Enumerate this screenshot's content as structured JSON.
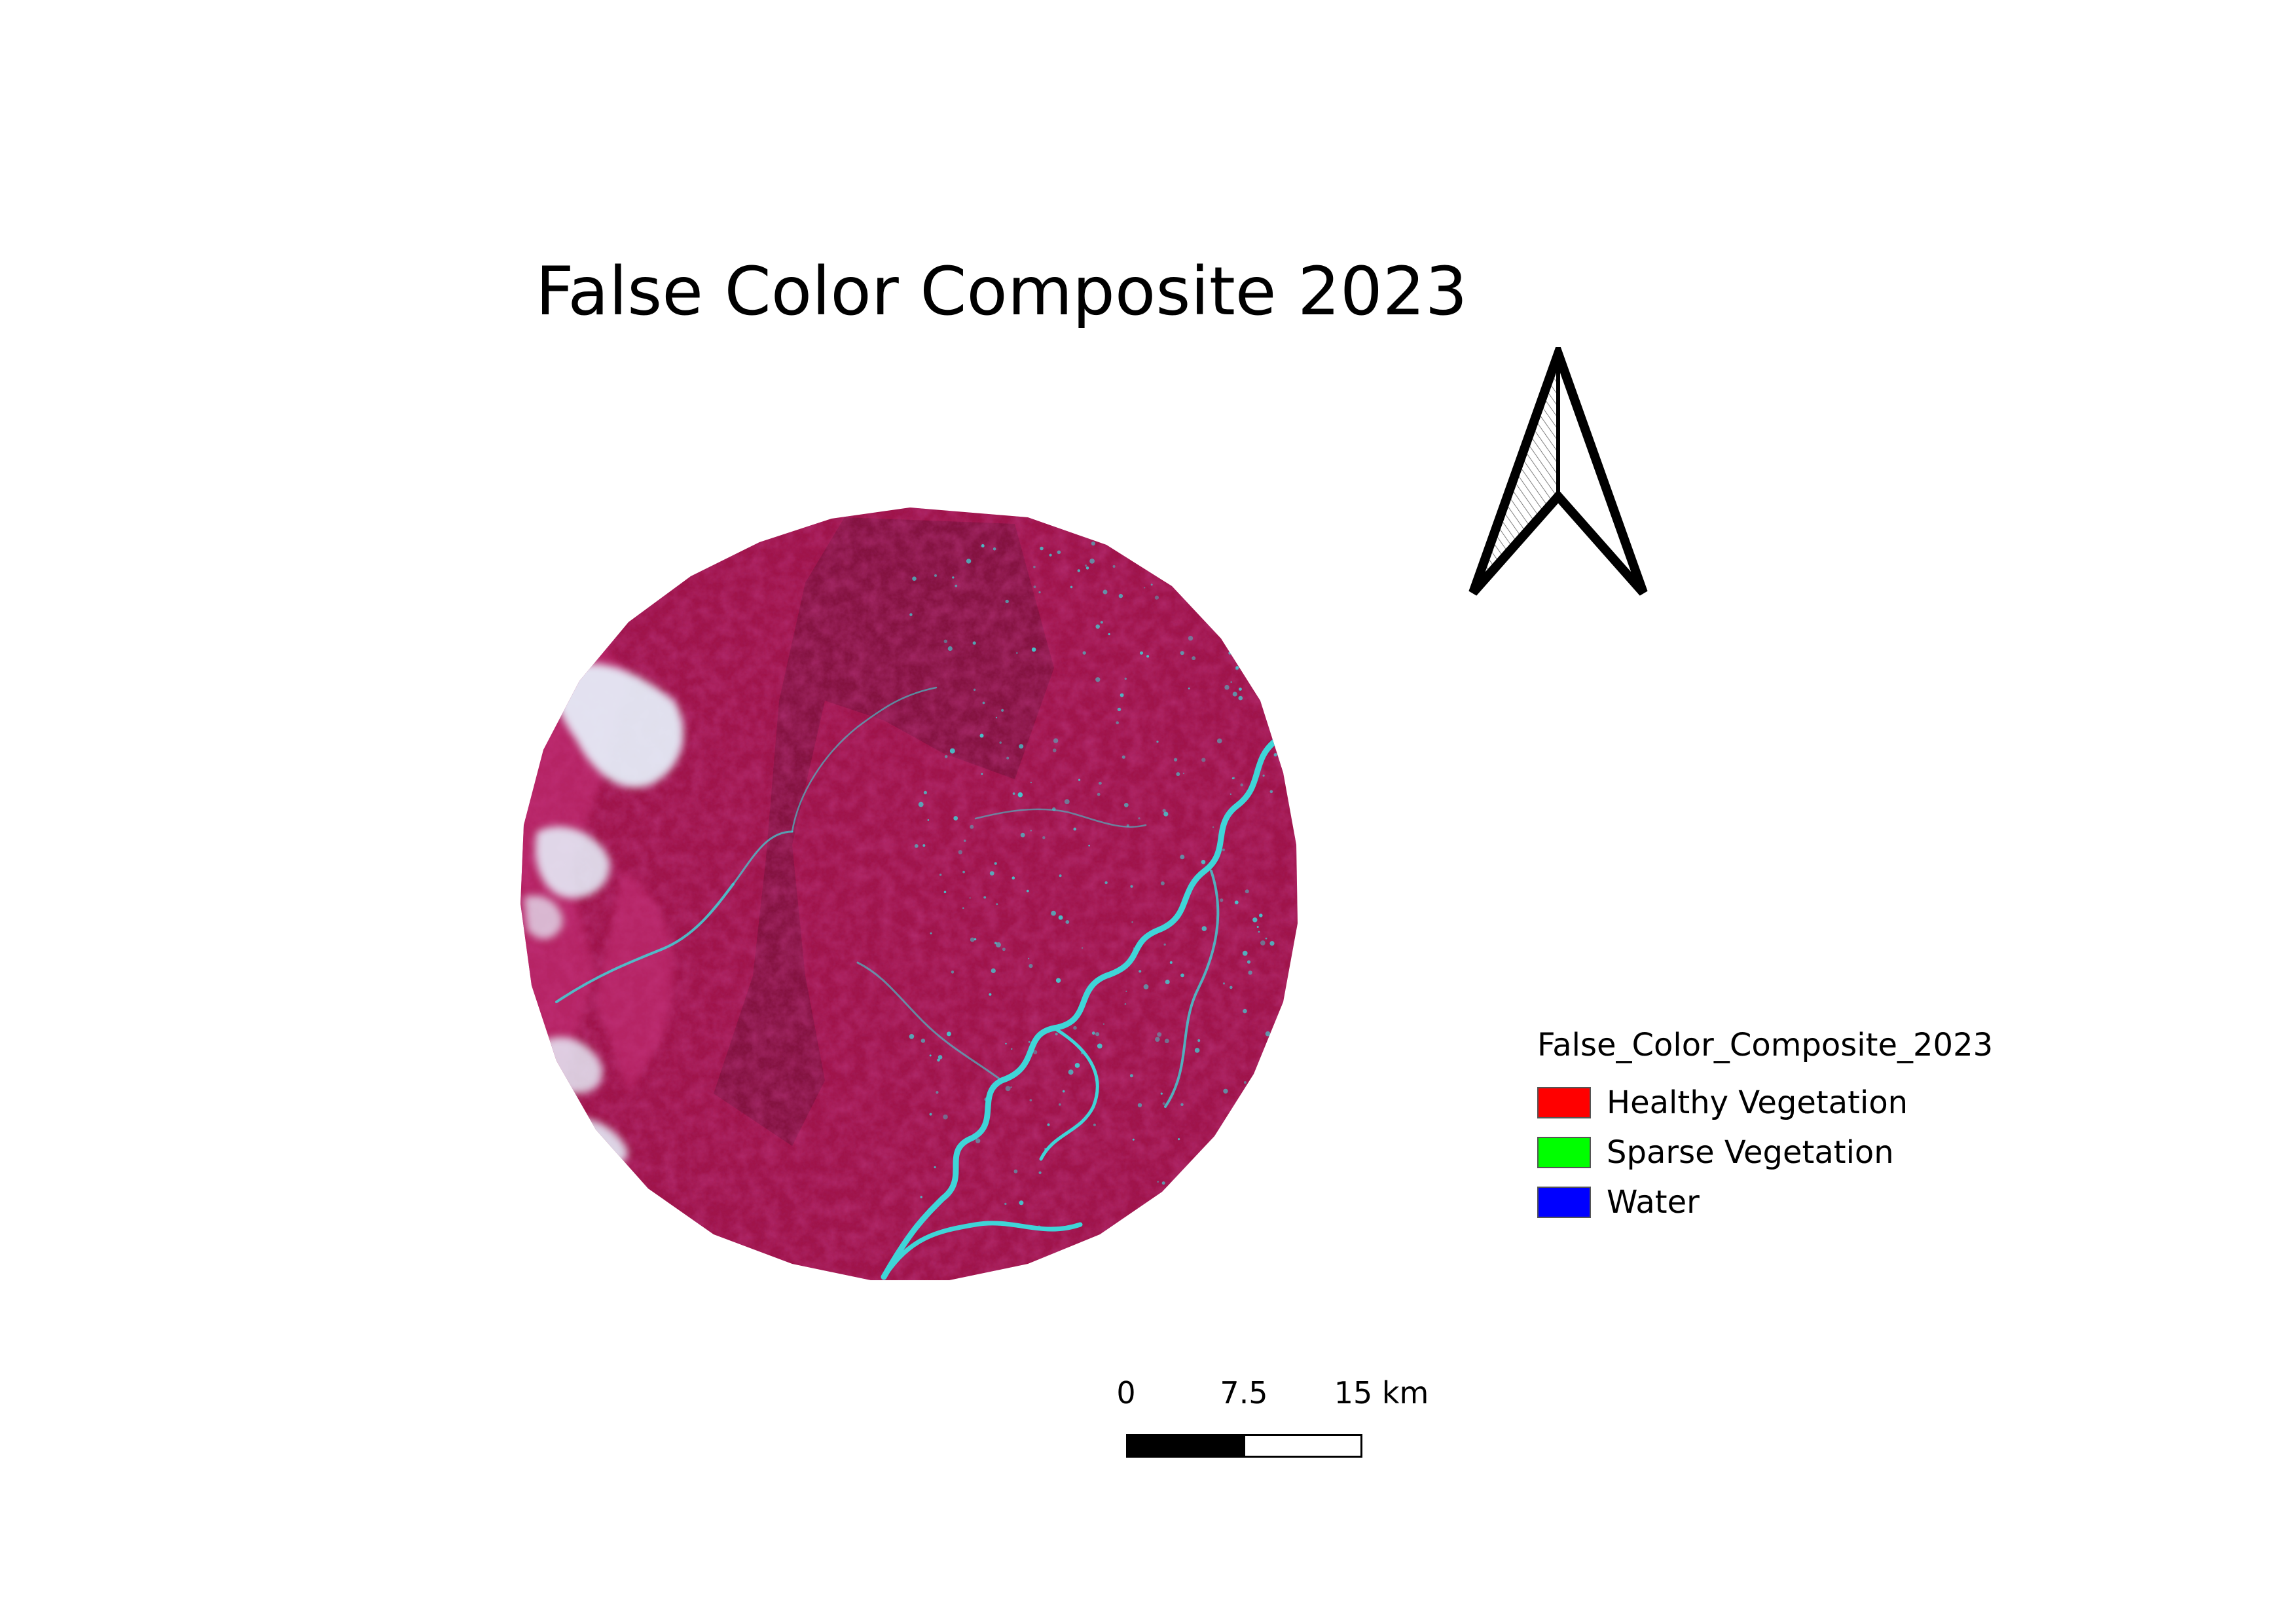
{
  "map": {
    "title": "False Color Composite 2023"
  },
  "legend": {
    "title": "False_Color_Composite_2023",
    "items": [
      {
        "label": "Healthy Vegetation",
        "color": "#ff0000"
      },
      {
        "label": "Sparse Vegetation",
        "color": "#00ff00"
      },
      {
        "label": "Water",
        "color": "#0000ff"
      }
    ]
  },
  "scale_bar": {
    "labels": [
      "0",
      "7.5",
      "15 km"
    ]
  },
  "colors": {
    "raster_base": "#a0144a",
    "raster_dark": "#6e1238",
    "raster_light": "#c8307a",
    "river": "#3fd5d8",
    "cloud": "#e8f6ff"
  }
}
